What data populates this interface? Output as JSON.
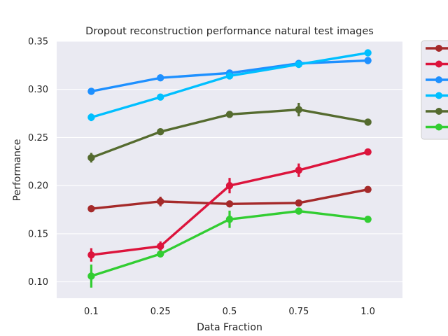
{
  "chart_data": {
    "type": "line",
    "title": "Dropout reconstruction performance natural test images",
    "xlabel": "Data Fraction",
    "ylabel": "Performance",
    "categories": [
      "0.1",
      "0.25",
      "0.5",
      "0.75",
      "1.0"
    ],
    "ylim": [
      0.083,
      0.35
    ],
    "yticks": [
      0.1,
      0.15,
      0.2,
      0.25,
      0.3,
      0.35
    ],
    "ytick_labels": [
      "0.10",
      "0.15",
      "0.20",
      "0.25",
      "0.30",
      "0.35"
    ],
    "grid": true,
    "legend": "outside-top-right",
    "legend_labels_visible": false,
    "series": [
      {
        "color": "#a52a2a",
        "values": [
          0.176,
          0.1835,
          0.181,
          0.182,
          0.196
        ],
        "err": [
          0.002,
          0.005,
          0.002,
          0.002,
          0.001
        ]
      },
      {
        "color": "#dc143c",
        "values": [
          0.128,
          0.137,
          0.2,
          0.216,
          0.235
        ],
        "err": [
          0.007,
          0.005,
          0.008,
          0.007,
          0.001
        ]
      },
      {
        "color": "#1e90ff",
        "values": [
          0.298,
          0.312,
          0.317,
          0.327,
          0.33
        ],
        "err": [
          0.002,
          0.003,
          0.002,
          0.002,
          0.001
        ]
      },
      {
        "color": "#00bfff",
        "values": [
          0.271,
          0.292,
          0.314,
          0.326,
          0.338
        ],
        "err": [
          0.004,
          0.002,
          0.003,
          0.002,
          0.001
        ]
      },
      {
        "color": "#556b2f",
        "values": [
          0.229,
          0.256,
          0.274,
          0.279,
          0.266
        ],
        "err": [
          0.005,
          0.002,
          0.002,
          0.007,
          0.001
        ]
      },
      {
        "color": "#32cd32",
        "values": [
          0.106,
          0.129,
          0.165,
          0.1735,
          0.165
        ],
        "err": [
          0.012,
          0.003,
          0.009,
          0.003,
          0.001
        ]
      }
    ]
  }
}
